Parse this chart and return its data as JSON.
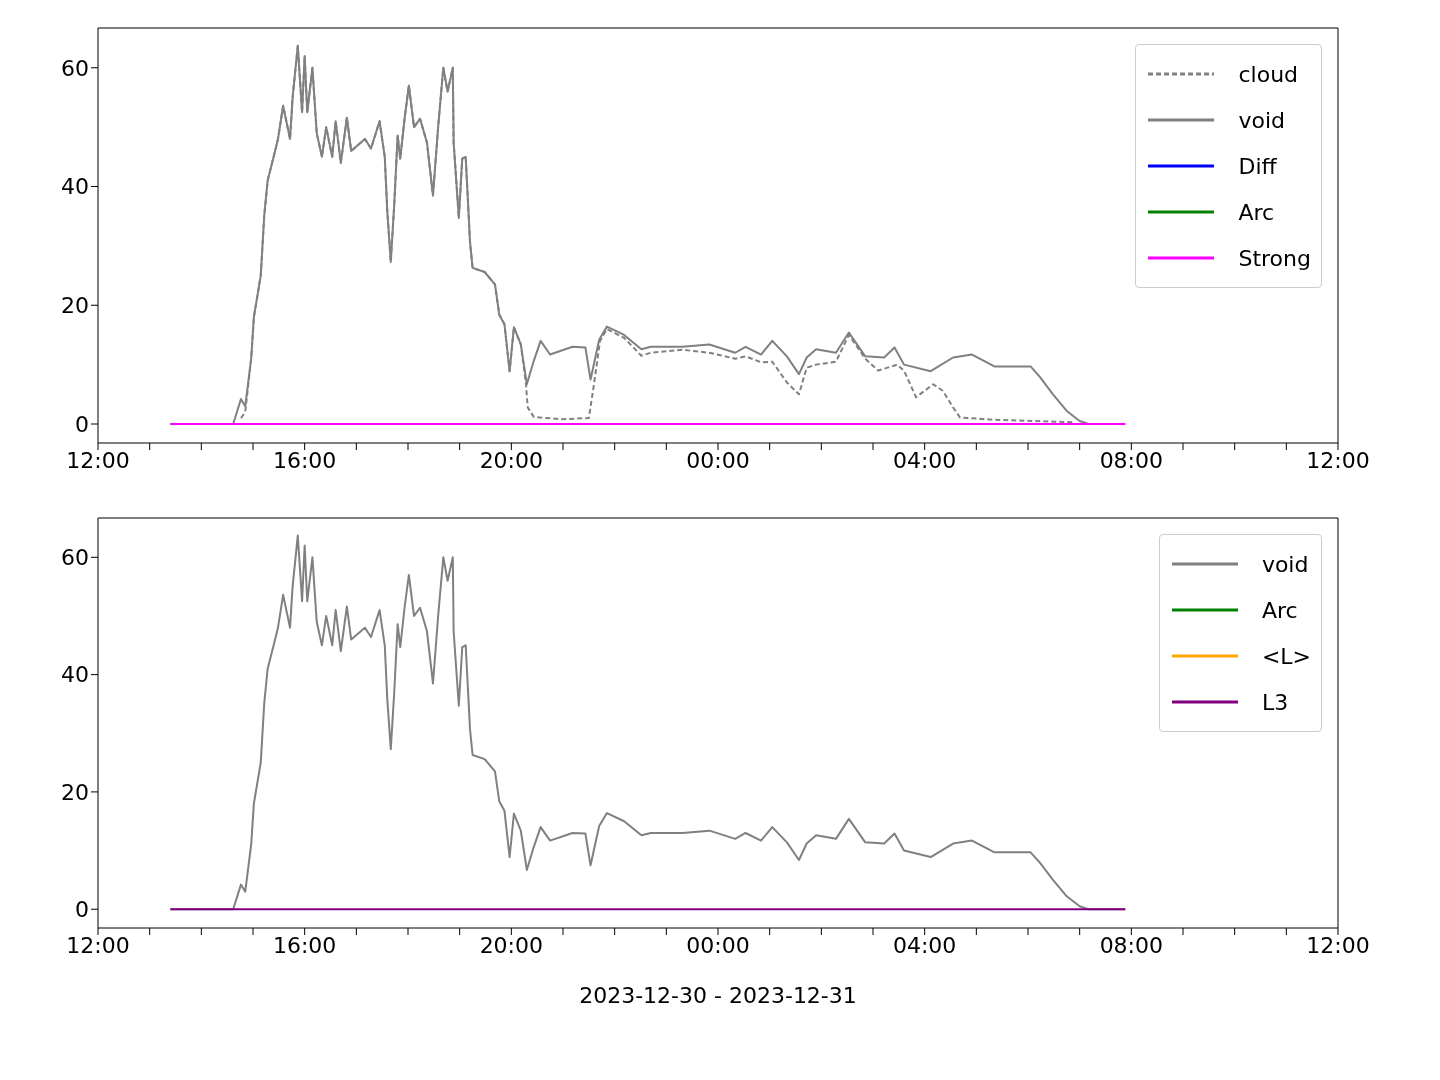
{
  "chart_data": [
    {
      "type": "line",
      "legend": "top right",
      "ylim": [
        -3.2,
        66.7
      ],
      "yticks": [
        0,
        20,
        40,
        60
      ],
      "xlim": [
        "2023-12-30T12:00",
        "2023-12-31T12:00"
      ],
      "xticks": [
        {
          "value": "2023-12-30T12:00",
          "label": "12:00"
        },
        {
          "value": "2023-12-30T13:00",
          "label": null
        },
        {
          "value": "2023-12-30T14:00",
          "label": null
        },
        {
          "value": "2023-12-30T15:00",
          "label": null
        },
        {
          "value": "2023-12-30T16:00",
          "label": "16:00"
        },
        {
          "value": "2023-12-30T17:00",
          "label": null
        },
        {
          "value": "2023-12-30T18:00",
          "label": null
        },
        {
          "value": "2023-12-30T19:00",
          "label": null
        },
        {
          "value": "2023-12-30T20:00",
          "label": "20:00"
        },
        {
          "value": "2023-12-30T21:00",
          "label": null
        },
        {
          "value": "2023-12-30T22:00",
          "label": null
        },
        {
          "value": "2023-12-30T23:00",
          "label": null
        },
        {
          "value": "2023-12-31T00:00",
          "label": "00:00"
        },
        {
          "value": "2023-12-31T01:00",
          "label": null
        },
        {
          "value": "2023-12-31T02:00",
          "label": null
        },
        {
          "value": "2023-12-31T03:00",
          "label": null
        },
        {
          "value": "2023-12-31T04:00",
          "label": "04:00"
        },
        {
          "value": "2023-12-31T05:00",
          "label": null
        },
        {
          "value": "2023-12-31T06:00",
          "label": null
        },
        {
          "value": "2023-12-31T07:00",
          "label": null
        },
        {
          "value": "2023-12-31T08:00",
          "label": "08:00"
        },
        {
          "value": "2023-12-31T09:00",
          "label": null
        },
        {
          "value": "2023-12-31T10:00",
          "label": null
        },
        {
          "value": "2023-12-31T11:00",
          "label": null
        },
        {
          "value": "2023-12-31T12:00",
          "label": "12:00"
        }
      ],
      "series": [
        {
          "name": "cloud",
          "color": "#808080",
          "line_style": "dashed",
          "x": [
            "2023-12-30T14:46",
            "2023-12-30T14:51",
            "2023-12-30T14:58",
            "2023-12-30T15:01",
            "2023-12-30T15:09",
            "2023-12-30T15:13",
            "2023-12-30T15:17",
            "2023-12-30T15:24",
            "2023-12-30T15:29",
            "2023-12-30T15:35",
            "2023-12-30T15:43",
            "2023-12-30T15:46",
            "2023-12-30T15:52",
            "2023-12-30T15:57",
            "2023-12-30T16:00",
            "2023-12-30T16:03",
            "2023-12-30T16:09",
            "2023-12-30T16:14",
            "2023-12-30T16:20",
            "2023-12-30T16:25",
            "2023-12-30T16:32",
            "2023-12-30T16:36",
            "2023-12-30T16:42",
            "2023-12-30T16:49",
            "2023-12-30T16:54",
            "2023-12-30T17:10",
            "2023-12-30T17:17",
            "2023-12-30T17:27",
            "2023-12-30T17:33",
            "2023-12-30T17:36",
            "2023-12-30T17:40",
            "2023-12-30T17:44",
            "2023-12-30T17:48",
            "2023-12-30T17:51",
            "2023-12-30T17:56",
            "2023-12-30T18:01",
            "2023-12-30T18:07",
            "2023-12-30T18:14",
            "2023-12-30T18:22",
            "2023-12-30T18:29",
            "2023-12-30T18:35",
            "2023-12-30T18:41",
            "2023-12-30T18:46",
            "2023-12-30T18:52",
            "2023-12-30T18:53",
            "2023-12-30T18:59",
            "2023-12-30T19:03",
            "2023-12-30T19:07",
            "2023-12-30T19:12",
            "2023-12-30T19:15",
            "2023-12-30T19:29",
            "2023-12-30T19:41",
            "2023-12-30T19:46",
            "2023-12-30T19:52",
            "2023-12-30T19:58",
            "2023-12-30T20:03",
            "2023-12-30T20:11",
            "2023-12-30T20:17",
            "2023-12-30T20:19",
            "2023-12-30T20:26",
            "2023-12-30T20:57",
            "2023-12-30T21:30",
            "2023-12-30T21:36",
            "2023-12-30T21:43",
            "2023-12-30T21:51",
            "2023-12-30T22:11",
            "2023-12-30T22:31",
            "2023-12-30T22:42",
            "2023-12-30T23:19",
            "2023-12-30T23:50",
            "2023-12-31T00:20",
            "2023-12-31T00:32",
            "2023-12-31T00:50",
            "2023-12-31T01:03",
            "2023-12-31T01:20",
            "2023-12-31T01:34",
            "2023-12-31T01:43",
            "2023-12-31T01:54",
            "2023-12-31T02:17",
            "2023-12-31T02:32",
            "2023-12-31T02:51",
            "2023-12-31T03:06",
            "2023-12-31T03:28",
            "2023-12-31T03:36",
            "2023-12-31T03:50",
            "2023-12-31T04:10",
            "2023-12-31T04:21",
            "2023-12-31T04:33",
            "2023-12-31T04:41",
            "2023-12-31T05:21",
            "2023-12-31T06:52"
          ],
          "values": [
            1,
            2,
            11.2,
            18,
            25,
            35,
            41,
            45,
            48,
            53.6,
            48,
            55,
            63.7,
            52.5,
            62,
            52.5,
            60,
            49,
            45,
            50,
            45,
            51,
            44,
            51.6,
            46,
            48,
            46.4,
            51,
            45,
            35.7,
            27.3,
            36.9,
            48.6,
            44.7,
            51.4,
            57,
            50,
            51.4,
            47.4,
            38.5,
            50,
            60,
            56,
            60,
            47.4,
            34.7,
            44.7,
            45,
            30.7,
            26.3,
            25.6,
            23.5,
            18.4,
            16.8,
            8.9,
            16.3,
            13.4,
            6.7,
            2.8,
            1.2,
            0.8,
            1,
            6.7,
            14,
            16,
            14.5,
            11.5,
            12,
            12.5,
            12,
            11,
            11.4,
            10.4,
            10.5,
            7,
            5,
            9.5,
            10,
            10.5,
            15,
            11,
            9,
            10,
            9,
            4.5,
            6.7,
            5.6,
            2.8,
            1.1,
            0.7,
            0.3
          ]
        },
        {
          "name": "void",
          "color": "#808080",
          "x": [
            "2023-12-30T13:24",
            "2023-12-30T14:37",
            "2023-12-30T14:46",
            "2023-12-30T14:51",
            "2023-12-30T14:58",
            "2023-12-30T15:01",
            "2023-12-30T15:09",
            "2023-12-30T15:13",
            "2023-12-30T15:17",
            "2023-12-30T15:24",
            "2023-12-30T15:29",
            "2023-12-30T15:35",
            "2023-12-30T15:43",
            "2023-12-30T15:46",
            "2023-12-30T15:52",
            "2023-12-30T15:57",
            "2023-12-30T16:00",
            "2023-12-30T16:03",
            "2023-12-30T16:09",
            "2023-12-30T16:14",
            "2023-12-30T16:20",
            "2023-12-30T16:25",
            "2023-12-30T16:32",
            "2023-12-30T16:36",
            "2023-12-30T16:42",
            "2023-12-30T16:49",
            "2023-12-30T16:54",
            "2023-12-30T17:10",
            "2023-12-30T17:17",
            "2023-12-30T17:27",
            "2023-12-30T17:33",
            "2023-12-30T17:36",
            "2023-12-30T17:40",
            "2023-12-30T17:44",
            "2023-12-30T17:48",
            "2023-12-30T17:51",
            "2023-12-30T17:56",
            "2023-12-30T18:01",
            "2023-12-30T18:07",
            "2023-12-30T18:14",
            "2023-12-30T18:22",
            "2023-12-30T18:29",
            "2023-12-30T18:35",
            "2023-12-30T18:41",
            "2023-12-30T18:46",
            "2023-12-30T18:52",
            "2023-12-30T18:53",
            "2023-12-30T18:59",
            "2023-12-30T19:03",
            "2023-12-30T19:07",
            "2023-12-30T19:12",
            "2023-12-30T19:15",
            "2023-12-30T19:29",
            "2023-12-30T19:41",
            "2023-12-30T19:46",
            "2023-12-30T19:52",
            "2023-12-30T19:58",
            "2023-12-30T20:03",
            "2023-12-30T20:11",
            "2023-12-30T20:18",
            "2023-12-30T20:26",
            "2023-12-30T20:34",
            "2023-12-30T20:45",
            "2023-12-30T21:11",
            "2023-12-30T21:26",
            "2023-12-30T21:32",
            "2023-12-30T21:42",
            "2023-12-30T21:51",
            "2023-12-30T22:11",
            "2023-12-30T22:31",
            "2023-12-30T22:42",
            "2023-12-30T23:19",
            "2023-12-30T23:50",
            "2023-12-31T00:20",
            "2023-12-31T00:32",
            "2023-12-31T00:50",
            "2023-12-31T01:03",
            "2023-12-31T01:20",
            "2023-12-31T01:34",
            "2023-12-31T01:43",
            "2023-12-31T01:54",
            "2023-12-31T02:17",
            "2023-12-31T02:32",
            "2023-12-31T02:51",
            "2023-12-31T03:13",
            "2023-12-31T03:25",
            "2023-12-31T03:36",
            "2023-12-31T04:07",
            "2023-12-31T04:33",
            "2023-12-31T04:55",
            "2023-12-31T05:21",
            "2023-12-31T05:48",
            "2023-12-31T06:03",
            "2023-12-31T06:14",
            "2023-12-31T06:29",
            "2023-12-31T06:45",
            "2023-12-31T07:00",
            "2023-12-31T07:10",
            "2023-12-31T07:53"
          ],
          "values": [
            0,
            0,
            4.2,
            3,
            11.2,
            18,
            25,
            35,
            41,
            45,
            48,
            53.6,
            48,
            55,
            63.7,
            52.5,
            62,
            52.5,
            60,
            49,
            45,
            50,
            45,
            51,
            44,
            51.6,
            46,
            48,
            46.4,
            51,
            45,
            35.7,
            27.3,
            36.9,
            48.6,
            44.7,
            51.4,
            57,
            50,
            51.4,
            47.4,
            38.5,
            50,
            60,
            56,
            60,
            47.4,
            34.7,
            44.7,
            45,
            30.7,
            26.3,
            25.6,
            23.5,
            18.4,
            16.8,
            8.9,
            16.3,
            13.4,
            6.7,
            10.6,
            14,
            11.7,
            13,
            12.9,
            7.5,
            14.2,
            16.4,
            15,
            12.6,
            13,
            13,
            13.4,
            12,
            13,
            11.7,
            14,
            11.4,
            8.4,
            11.2,
            12.6,
            12,
            15.4,
            11.4,
            11.2,
            12.9,
            10,
            8.9,
            11.2,
            11.7,
            9.7,
            9.7,
            9.7,
            7.9,
            5,
            2.2,
            0.5,
            0,
            0
          ]
        },
        {
          "name": "Diff",
          "color": "#0000ff"
        },
        {
          "name": "Arc",
          "color": "#008000"
        },
        {
          "name": "Strong",
          "color": "#ff00ff",
          "x": [
            "2023-12-30T13:24",
            "2023-12-31T07:53"
          ],
          "values": [
            0,
            0
          ]
        }
      ]
    },
    {
      "type": "line",
      "legend": "top right",
      "xlabel": "2023-12-30 - 2023-12-31",
      "ylim": [
        -3.2,
        66.7
      ],
      "yticks": [
        0,
        20,
        40,
        60
      ],
      "xlim": [
        "2023-12-30T12:00",
        "2023-12-31T12:00"
      ],
      "xticks": [
        {
          "value": "2023-12-30T12:00",
          "label": "12:00"
        },
        {
          "value": "2023-12-30T13:00",
          "label": null
        },
        {
          "value": "2023-12-30T14:00",
          "label": null
        },
        {
          "value": "2023-12-30T15:00",
          "label": null
        },
        {
          "value": "2023-12-30T16:00",
          "label": "16:00"
        },
        {
          "value": "2023-12-30T17:00",
          "label": null
        },
        {
          "value": "2023-12-30T18:00",
          "label": null
        },
        {
          "value": "2023-12-30T19:00",
          "label": null
        },
        {
          "value": "2023-12-30T20:00",
          "label": "20:00"
        },
        {
          "value": "2023-12-30T21:00",
          "label": null
        },
        {
          "value": "2023-12-30T22:00",
          "label": null
        },
        {
          "value": "2023-12-30T23:00",
          "label": null
        },
        {
          "value": "2023-12-31T00:00",
          "label": "00:00"
        },
        {
          "value": "2023-12-31T01:00",
          "label": null
        },
        {
          "value": "2023-12-31T02:00",
          "label": null
        },
        {
          "value": "2023-12-31T03:00",
          "label": null
        },
        {
          "value": "2023-12-31T04:00",
          "label": "04:00"
        },
        {
          "value": "2023-12-31T05:00",
          "label": null
        },
        {
          "value": "2023-12-31T06:00",
          "label": null
        },
        {
          "value": "2023-12-31T07:00",
          "label": null
        },
        {
          "value": "2023-12-31T08:00",
          "label": "08:00"
        },
        {
          "value": "2023-12-31T09:00",
          "label": null
        },
        {
          "value": "2023-12-31T10:00",
          "label": null
        },
        {
          "value": "2023-12-31T11:00",
          "label": null
        },
        {
          "value": "2023-12-31T12:00",
          "label": "12:00"
        }
      ],
      "series": [
        {
          "name": "void",
          "color": "#808080",
          "x": [
            "2023-12-30T13:24",
            "2023-12-30T14:37",
            "2023-12-30T14:46",
            "2023-12-30T14:51",
            "2023-12-30T14:58",
            "2023-12-30T15:01",
            "2023-12-30T15:09",
            "2023-12-30T15:13",
            "2023-12-30T15:17",
            "2023-12-30T15:24",
            "2023-12-30T15:29",
            "2023-12-30T15:35",
            "2023-12-30T15:43",
            "2023-12-30T15:46",
            "2023-12-30T15:52",
            "2023-12-30T15:57",
            "2023-12-30T16:00",
            "2023-12-30T16:03",
            "2023-12-30T16:09",
            "2023-12-30T16:14",
            "2023-12-30T16:20",
            "2023-12-30T16:25",
            "2023-12-30T16:32",
            "2023-12-30T16:36",
            "2023-12-30T16:42",
            "2023-12-30T16:49",
            "2023-12-30T16:54",
            "2023-12-30T17:10",
            "2023-12-30T17:17",
            "2023-12-30T17:27",
            "2023-12-30T17:33",
            "2023-12-30T17:36",
            "2023-12-30T17:40",
            "2023-12-30T17:44",
            "2023-12-30T17:48",
            "2023-12-30T17:51",
            "2023-12-30T17:56",
            "2023-12-30T18:01",
            "2023-12-30T18:07",
            "2023-12-30T18:14",
            "2023-12-30T18:22",
            "2023-12-30T18:29",
            "2023-12-30T18:35",
            "2023-12-30T18:41",
            "2023-12-30T18:46",
            "2023-12-30T18:52",
            "2023-12-30T18:53",
            "2023-12-30T18:59",
            "2023-12-30T19:03",
            "2023-12-30T19:07",
            "2023-12-30T19:12",
            "2023-12-30T19:15",
            "2023-12-30T19:29",
            "2023-12-30T19:41",
            "2023-12-30T19:46",
            "2023-12-30T19:52",
            "2023-12-30T19:58",
            "2023-12-30T20:03",
            "2023-12-30T20:11",
            "2023-12-30T20:18",
            "2023-12-30T20:26",
            "2023-12-30T20:34",
            "2023-12-30T20:45",
            "2023-12-30T21:11",
            "2023-12-30T21:26",
            "2023-12-30T21:32",
            "2023-12-30T21:42",
            "2023-12-30T21:51",
            "2023-12-30T22:11",
            "2023-12-30T22:31",
            "2023-12-30T22:42",
            "2023-12-30T23:19",
            "2023-12-30T23:50",
            "2023-12-31T00:20",
            "2023-12-31T00:32",
            "2023-12-31T00:50",
            "2023-12-31T01:03",
            "2023-12-31T01:20",
            "2023-12-31T01:34",
            "2023-12-31T01:43",
            "2023-12-31T01:54",
            "2023-12-31T02:17",
            "2023-12-31T02:32",
            "2023-12-31T02:51",
            "2023-12-31T03:13",
            "2023-12-31T03:25",
            "2023-12-31T03:36",
            "2023-12-31T04:07",
            "2023-12-31T04:33",
            "2023-12-31T04:55",
            "2023-12-31T05:21",
            "2023-12-31T05:48",
            "2023-12-31T06:03",
            "2023-12-31T06:14",
            "2023-12-31T06:29",
            "2023-12-31T06:45",
            "2023-12-31T07:00",
            "2023-12-31T07:10",
            "2023-12-31T07:53"
          ],
          "values": [
            0,
            0,
            4.2,
            3,
            11.2,
            18,
            25,
            35,
            41,
            45,
            48,
            53.6,
            48,
            55,
            63.7,
            52.5,
            62,
            52.5,
            60,
            49,
            45,
            50,
            45,
            51,
            44,
            51.6,
            46,
            48,
            46.4,
            51,
            45,
            35.7,
            27.3,
            36.9,
            48.6,
            44.7,
            51.4,
            57,
            50,
            51.4,
            47.4,
            38.5,
            50,
            60,
            56,
            60,
            47.4,
            34.7,
            44.7,
            45,
            30.7,
            26.3,
            25.6,
            23.5,
            18.4,
            16.8,
            8.9,
            16.3,
            13.4,
            6.7,
            10.6,
            14,
            11.7,
            13,
            12.9,
            7.5,
            14.2,
            16.4,
            15,
            12.6,
            13,
            13,
            13.4,
            12,
            13,
            11.7,
            14,
            11.4,
            8.4,
            11.2,
            12.6,
            12,
            15.4,
            11.4,
            11.2,
            12.9,
            10,
            8.9,
            11.2,
            11.7,
            9.7,
            9.7,
            9.7,
            7.9,
            5,
            2.2,
            0.5,
            0,
            0
          ]
        },
        {
          "name": "Arc",
          "color": "#008000"
        },
        {
          "name": "<L>",
          "color": "#ffa500"
        },
        {
          "name": "L3",
          "color": "#800080",
          "x": [
            "2023-12-30T13:24",
            "2023-12-31T07:53"
          ],
          "values": [
            0,
            0
          ]
        }
      ]
    }
  ]
}
